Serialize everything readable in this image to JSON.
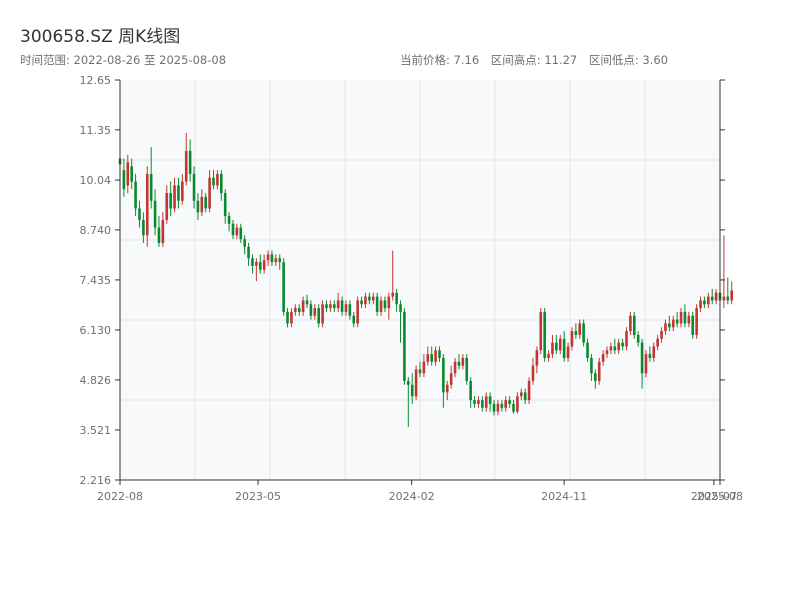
{
  "header": {
    "title": "300658.SZ 周K线图",
    "range_text": "时间范围: 2022-08-26 至 2025-08-08",
    "current_price": "当前价格: 7.16",
    "range_high": "区间高点: 11.27",
    "range_low": "区间低点: 3.60"
  },
  "colors": {
    "up": "#c23531",
    "down": "#0a8a2f",
    "plot_bg": "#f7f9fb",
    "grid": "#e3e6ea",
    "axis": "#333333"
  },
  "chart_data": {
    "type": "candlestick",
    "title": "300658.SZ 周K线图",
    "ylim": [
      2.216,
      12.65
    ],
    "y_ticks": [
      "12.65",
      "11.35",
      "10.04",
      "8.740",
      "7.435",
      "6.130",
      "4.826",
      "3.521",
      "2.216"
    ],
    "x_ticks": [
      "2022-08",
      "2023-05",
      "2024-02",
      "2024-11",
      "2025-07",
      "2025-08"
    ],
    "x_tick_dates": [
      "2022-08-26",
      "2023-05-01",
      "2024-02-01",
      "2024-11-01",
      "2025-07-28",
      "2025-08-08"
    ],
    "grid": true,
    "date_start": "2022-08-26",
    "date_end": "2025-08-08",
    "candles": [
      [
        10.6,
        10.45,
        10.8,
        9.8
      ],
      [
        10.3,
        9.8,
        10.6,
        9.6
      ],
      [
        9.9,
        10.5,
        10.7,
        9.7
      ],
      [
        10.4,
        10.0,
        10.6,
        9.8
      ],
      [
        10.0,
        9.3,
        10.2,
        9.1
      ],
      [
        9.3,
        9.0,
        9.5,
        8.8
      ],
      [
        9.0,
        8.6,
        9.2,
        8.4
      ],
      [
        8.6,
        10.2,
        10.4,
        8.3
      ],
      [
        10.2,
        9.5,
        10.9,
        9.3
      ],
      [
        9.5,
        8.8,
        9.8,
        8.6
      ],
      [
        8.8,
        8.4,
        9.1,
        8.3
      ],
      [
        8.4,
        9.0,
        9.2,
        8.3
      ],
      [
        9.0,
        9.7,
        9.9,
        8.9
      ],
      [
        9.7,
        9.3,
        10.0,
        9.1
      ],
      [
        9.3,
        9.9,
        10.1,
        9.2
      ],
      [
        9.9,
        9.5,
        10.1,
        9.3
      ],
      [
        9.5,
        10.0,
        10.2,
        9.4
      ],
      [
        10.0,
        10.8,
        11.27,
        9.9
      ],
      [
        10.8,
        10.2,
        11.1,
        10.0
      ],
      [
        10.2,
        9.5,
        10.4,
        9.3
      ],
      [
        9.5,
        9.2,
        9.7,
        9.0
      ],
      [
        9.2,
        9.6,
        9.8,
        9.1
      ],
      [
        9.6,
        9.3,
        9.7,
        9.2
      ],
      [
        9.3,
        10.1,
        10.3,
        9.2
      ],
      [
        10.1,
        9.9,
        10.3,
        9.8
      ],
      [
        9.9,
        10.2,
        10.3,
        9.8
      ],
      [
        10.2,
        9.7,
        10.3,
        9.5
      ],
      [
        9.7,
        9.1,
        9.8,
        8.9
      ],
      [
        9.1,
        8.9,
        9.2,
        8.7
      ],
      [
        8.9,
        8.6,
        9.0,
        8.5
      ],
      [
        8.6,
        8.8,
        8.9,
        8.5
      ],
      [
        8.8,
        8.5,
        8.9,
        8.4
      ],
      [
        8.5,
        8.3,
        8.6,
        8.1
      ],
      [
        8.3,
        8.0,
        8.4,
        7.8
      ],
      [
        8.0,
        7.8,
        8.1,
        7.6
      ],
      [
        7.8,
        7.9,
        8.0,
        7.4
      ],
      [
        7.9,
        7.7,
        8.1,
        7.6
      ],
      [
        7.7,
        7.95,
        8.1,
        7.6
      ],
      [
        7.95,
        8.1,
        8.2,
        7.8
      ],
      [
        8.1,
        7.9,
        8.2,
        7.8
      ],
      [
        7.9,
        8.0,
        8.1,
        7.8
      ],
      [
        8.0,
        7.9,
        8.1,
        7.7
      ],
      [
        7.9,
        6.6,
        8.0,
        6.5
      ],
      [
        6.6,
        6.3,
        6.7,
        6.2
      ],
      [
        6.3,
        6.6,
        6.7,
        6.2
      ],
      [
        6.6,
        6.7,
        6.8,
        6.5
      ],
      [
        6.7,
        6.6,
        6.8,
        6.5
      ],
      [
        6.6,
        6.9,
        7.0,
        6.5
      ],
      [
        6.9,
        6.8,
        7.05,
        6.7
      ],
      [
        6.8,
        6.5,
        6.9,
        6.4
      ],
      [
        6.5,
        6.7,
        6.8,
        6.4
      ],
      [
        6.7,
        6.3,
        6.8,
        6.2
      ],
      [
        6.3,
        6.8,
        6.9,
        6.2
      ],
      [
        6.8,
        6.7,
        6.9,
        6.6
      ],
      [
        6.7,
        6.8,
        6.9,
        6.6
      ],
      [
        6.8,
        6.7,
        6.9,
        6.6
      ],
      [
        6.7,
        6.9,
        7.1,
        6.6
      ],
      [
        6.9,
        6.6,
        7.0,
        6.5
      ],
      [
        6.6,
        6.8,
        6.9,
        6.5
      ],
      [
        6.8,
        6.5,
        6.9,
        6.4
      ],
      [
        6.5,
        6.3,
        6.6,
        6.2
      ],
      [
        6.3,
        6.9,
        7.0,
        6.2
      ],
      [
        6.9,
        6.8,
        7.0,
        6.7
      ],
      [
        6.8,
        7.0,
        7.1,
        6.7
      ],
      [
        7.0,
        6.9,
        7.1,
        6.8
      ],
      [
        6.9,
        7.0,
        7.1,
        6.8
      ],
      [
        7.0,
        6.6,
        7.1,
        6.5
      ],
      [
        6.6,
        6.9,
        7.0,
        6.5
      ],
      [
        6.9,
        6.7,
        7.0,
        6.6
      ],
      [
        6.7,
        7.0,
        7.1,
        6.4
      ],
      [
        7.0,
        7.1,
        8.2,
        6.9
      ],
      [
        7.1,
        6.8,
        7.2,
        6.6
      ],
      [
        6.8,
        6.6,
        6.9,
        5.8
      ],
      [
        6.6,
        4.8,
        6.7,
        4.7
      ],
      [
        4.8,
        4.7,
        4.9,
        3.6
      ],
      [
        4.7,
        4.4,
        5.0,
        4.2
      ],
      [
        4.4,
        5.1,
        5.2,
        4.3
      ],
      [
        5.1,
        5.0,
        5.3,
        4.9
      ],
      [
        5.0,
        5.3,
        5.5,
        4.9
      ],
      [
        5.3,
        5.5,
        5.7,
        5.2
      ],
      [
        5.5,
        5.3,
        5.7,
        5.2
      ],
      [
        5.3,
        5.6,
        5.7,
        5.2
      ],
      [
        5.6,
        5.4,
        5.7,
        5.3
      ],
      [
        5.4,
        4.5,
        5.5,
        4.1
      ],
      [
        4.5,
        4.7,
        4.8,
        4.3
      ],
      [
        4.7,
        5.0,
        5.2,
        4.6
      ],
      [
        5.0,
        5.3,
        5.4,
        4.9
      ],
      [
        5.3,
        5.2,
        5.5,
        5.1
      ],
      [
        5.2,
        5.4,
        5.5,
        5.1
      ],
      [
        5.4,
        4.8,
        5.5,
        4.7
      ],
      [
        4.8,
        4.3,
        4.9,
        4.1
      ],
      [
        4.3,
        4.2,
        4.4,
        4.1
      ],
      [
        4.2,
        4.3,
        4.4,
        4.1
      ],
      [
        4.3,
        4.1,
        4.4,
        4.0
      ],
      [
        4.1,
        4.4,
        4.5,
        4.0
      ],
      [
        4.4,
        4.2,
        4.5,
        4.0
      ],
      [
        4.2,
        4.0,
        4.3,
        3.9
      ],
      [
        4.0,
        4.2,
        4.3,
        3.9
      ],
      [
        4.2,
        4.1,
        4.3,
        4.0
      ],
      [
        4.1,
        4.3,
        4.4,
        4.0
      ],
      [
        4.3,
        4.2,
        4.4,
        4.1
      ],
      [
        4.2,
        4.0,
        4.3,
        3.95
      ],
      [
        4.0,
        4.4,
        4.5,
        3.95
      ],
      [
        4.4,
        4.5,
        4.6,
        4.3
      ],
      [
        4.5,
        4.3,
        4.6,
        4.2
      ],
      [
        4.3,
        4.8,
        4.9,
        4.2
      ],
      [
        4.8,
        5.2,
        5.4,
        4.7
      ],
      [
        5.2,
        5.6,
        5.7,
        5.0
      ],
      [
        5.6,
        6.6,
        6.7,
        5.5
      ],
      [
        6.6,
        5.4,
        6.7,
        5.3
      ],
      [
        5.4,
        5.5,
        5.6,
        5.3
      ],
      [
        5.5,
        5.8,
        6.0,
        5.4
      ],
      [
        5.8,
        5.6,
        6.0,
        5.5
      ],
      [
        5.6,
        5.9,
        6.0,
        5.5
      ],
      [
        5.9,
        5.4,
        6.1,
        5.3
      ],
      [
        5.4,
        5.7,
        5.8,
        5.3
      ],
      [
        5.7,
        6.1,
        6.2,
        5.6
      ],
      [
        6.1,
        6.0,
        6.3,
        5.9
      ],
      [
        6.0,
        6.3,
        6.4,
        5.9
      ],
      [
        6.3,
        5.8,
        6.4,
        5.7
      ],
      [
        5.8,
        5.4,
        5.9,
        5.3
      ],
      [
        5.4,
        5.0,
        5.5,
        4.8
      ],
      [
        5.0,
        4.8,
        5.1,
        4.6
      ],
      [
        4.8,
        5.3,
        5.4,
        4.7
      ],
      [
        5.3,
        5.5,
        5.6,
        5.2
      ],
      [
        5.5,
        5.6,
        5.7,
        5.4
      ],
      [
        5.6,
        5.7,
        5.8,
        5.5
      ],
      [
        5.7,
        5.6,
        5.9,
        5.5
      ],
      [
        5.6,
        5.8,
        5.9,
        5.5
      ],
      [
        5.8,
        5.7,
        5.9,
        5.6
      ],
      [
        5.7,
        6.1,
        6.2,
        5.6
      ],
      [
        6.1,
        6.5,
        6.6,
        6.0
      ],
      [
        6.5,
        6.0,
        6.6,
        5.9
      ],
      [
        6.0,
        5.8,
        6.1,
        5.7
      ],
      [
        5.8,
        5.0,
        5.9,
        4.6
      ],
      [
        5.0,
        5.5,
        5.6,
        4.9
      ],
      [
        5.5,
        5.4,
        5.7,
        5.3
      ],
      [
        5.4,
        5.7,
        5.8,
        5.3
      ],
      [
        5.7,
        5.9,
        6.0,
        5.6
      ],
      [
        5.9,
        6.1,
        6.2,
        5.8
      ],
      [
        6.1,
        6.3,
        6.4,
        6.0
      ],
      [
        6.3,
        6.2,
        6.5,
        6.1
      ],
      [
        6.2,
        6.4,
        6.5,
        6.1
      ],
      [
        6.4,
        6.3,
        6.6,
        6.2
      ],
      [
        6.3,
        6.6,
        6.7,
        6.2
      ],
      [
        6.6,
        6.3,
        6.8,
        6.2
      ],
      [
        6.3,
        6.5,
        6.6,
        6.2
      ],
      [
        6.5,
        6.0,
        6.6,
        5.9
      ],
      [
        6.0,
        6.7,
        6.8,
        5.9
      ],
      [
        6.7,
        6.9,
        7.0,
        6.6
      ],
      [
        6.9,
        6.8,
        7.0,
        6.7
      ],
      [
        6.8,
        7.0,
        7.1,
        6.7
      ],
      [
        7.0,
        6.9,
        7.2,
        6.8
      ],
      [
        6.9,
        7.1,
        7.2,
        6.8
      ],
      [
        7.1,
        6.9,
        7.2,
        6.8
      ],
      [
        6.9,
        7.0,
        8.6,
        6.7
      ],
      [
        7.0,
        6.9,
        7.5,
        6.8
      ],
      [
        6.9,
        7.16,
        7.4,
        6.8
      ]
    ]
  }
}
